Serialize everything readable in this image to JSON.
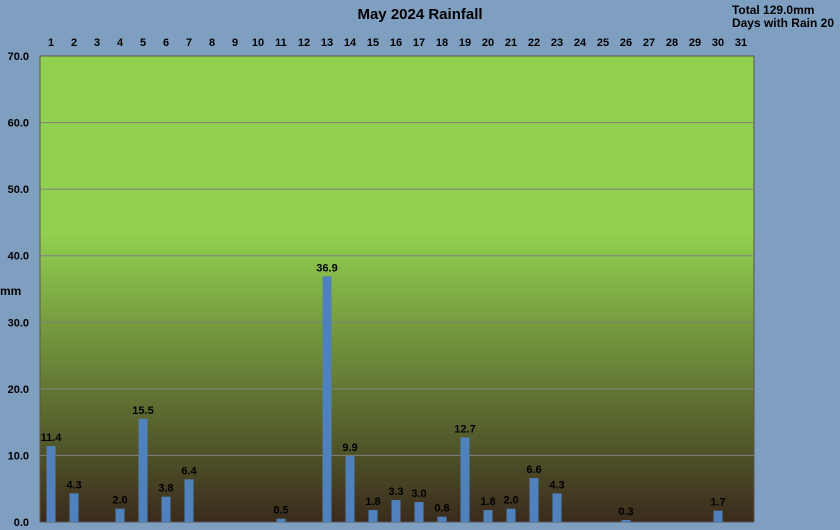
{
  "chart_data": {
    "type": "bar",
    "title": "May 2024 Rainfall",
    "ylabel": "mm",
    "ylim": [
      0,
      70
    ],
    "yticks": [
      "0.0",
      "10.0",
      "20.0",
      "30.0",
      "40.0",
      "50.0",
      "60.0",
      "70.0"
    ],
    "categories": [
      "1",
      "2",
      "3",
      "4",
      "5",
      "6",
      "7",
      "8",
      "9",
      "10",
      "11",
      "12",
      "13",
      "14",
      "15",
      "16",
      "17",
      "18",
      "19",
      "20",
      "21",
      "22",
      "23",
      "24",
      "25",
      "26",
      "27",
      "28",
      "29",
      "30",
      "31"
    ],
    "values": [
      11.4,
      4.3,
      0,
      2.0,
      15.5,
      3.8,
      6.4,
      0,
      0,
      0,
      0.5,
      0,
      36.9,
      9.9,
      1.8,
      3.3,
      3.0,
      0.8,
      12.7,
      1.8,
      2.0,
      6.6,
      4.3,
      0,
      0,
      0.3,
      0,
      0,
      0,
      1.7,
      0
    ],
    "labels": [
      "11.4",
      "4.3",
      "",
      "2.0",
      "15.5",
      "3.8",
      "6.4",
      "",
      "",
      "",
      "0.5",
      "",
      "36.9",
      "9.9",
      "1.8",
      "3.3",
      "3.0",
      "0.8",
      "12.7",
      "1.8",
      "2.0",
      "6.6",
      "4.3",
      "",
      "",
      "0.3",
      "",
      "",
      "",
      "1.7",
      ""
    ],
    "grid": true,
    "bar_color": "#4f81bd",
    "background_top": "#92d050",
    "background_bottom": "#3a2b1c"
  },
  "summary": {
    "total": "Total 129.0mm",
    "days_with_rain": "Days with Rain 20"
  }
}
